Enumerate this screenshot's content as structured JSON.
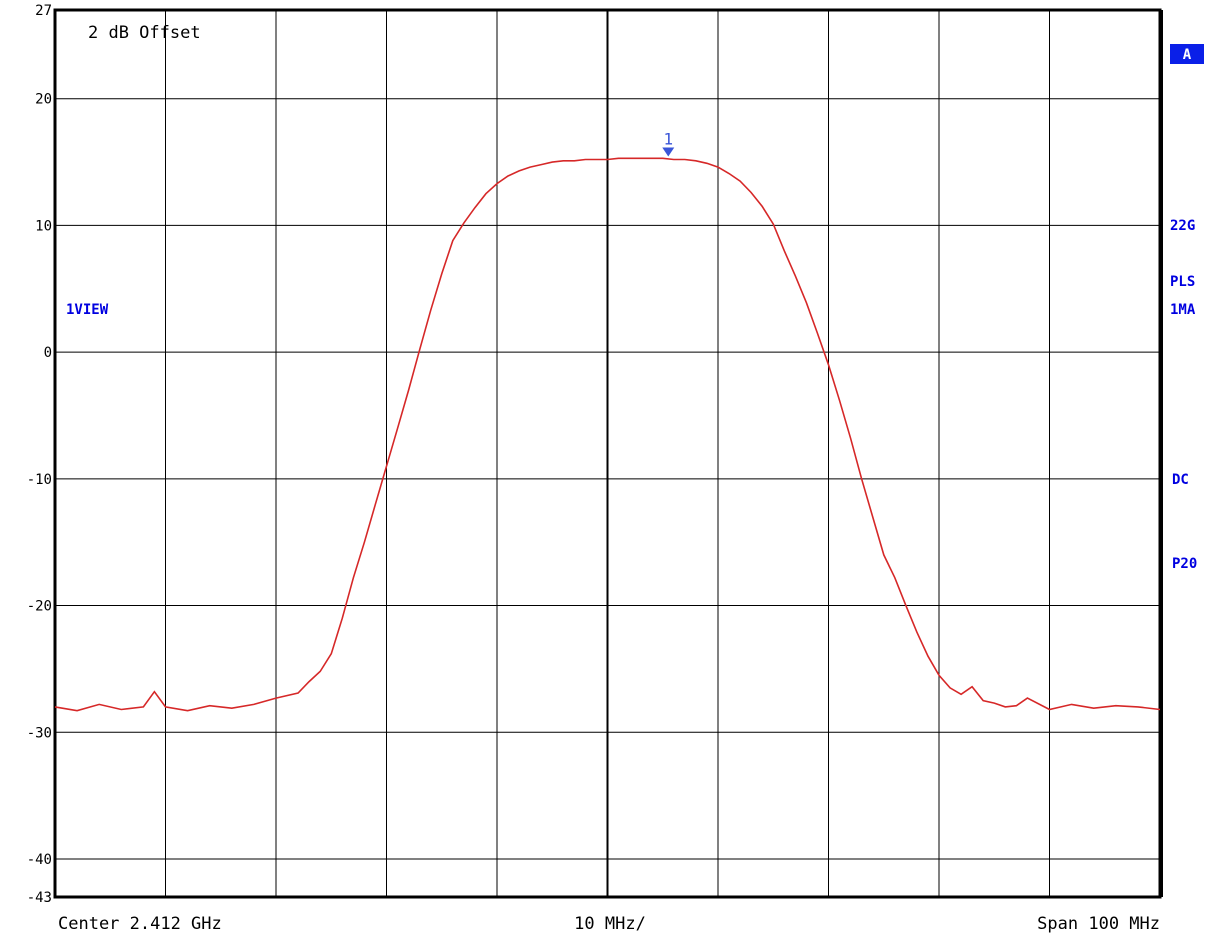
{
  "colors": {
    "trace": "#d62828",
    "annotation": "#0000e0",
    "marker": "#3a55d8",
    "grid": "#000000"
  },
  "chart_data": {
    "type": "line",
    "title": "",
    "xlabel": "",
    "ylabel": "",
    "grid": true,
    "xlim": [
      2362,
      2462
    ],
    "ylim": [
      -43,
      27
    ],
    "y_ticks": [
      {
        "value": 27,
        "label": "27"
      },
      {
        "value": 20,
        "label": "20"
      },
      {
        "value": 10,
        "label": "10"
      },
      {
        "value": 0,
        "label": "0"
      },
      {
        "value": -10,
        "label": "-10"
      },
      {
        "value": -20,
        "label": "-20"
      },
      {
        "value": -30,
        "label": "-30"
      },
      {
        "value": -40,
        "label": "-40"
      },
      {
        "value": -43,
        "label": "-43"
      }
    ],
    "x_gridlines": [
      2372,
      2382,
      2392,
      2402,
      2412,
      2422,
      2432,
      2442,
      2452
    ],
    "footer": {
      "center_label": "Center 2.412 GHz",
      "div_label": "10 MHz/",
      "span_label": "Span 100 MHz"
    },
    "annotation": "2 dB Offset",
    "left_label": "1VIEW",
    "side_labels": {
      "top_badge": "A",
      "label_1": "22G",
      "label_2": "PLS",
      "label_3": "1MA",
      "label_4": "DC",
      "label_5": "P20"
    },
    "marker": {
      "label": "1",
      "x": 2417.5,
      "y": 15.6
    },
    "series": [
      {
        "x": [
          2362,
          2364,
          2366,
          2368,
          2370,
          2371,
          2372,
          2374,
          2376,
          2378,
          2380,
          2382,
          2384,
          2385,
          2386,
          2387,
          2388,
          2389,
          2390,
          2391,
          2392,
          2393,
          2394,
          2395,
          2396,
          2397,
          2398,
          2399,
          2400,
          2401,
          2402,
          2403,
          2404,
          2405,
          2406,
          2407,
          2408,
          2409,
          2410,
          2411,
          2412,
          2413,
          2414,
          2415,
          2416,
          2417,
          2418,
          2419,
          2420,
          2421,
          2422,
          2423,
          2424,
          2425,
          2426,
          2427,
          2428,
          2429,
          2430,
          2431,
          2432,
          2433,
          2434,
          2435,
          2436,
          2437,
          2438,
          2439,
          2440,
          2441,
          2442,
          2443,
          2444,
          2445,
          2446,
          2447,
          2448,
          2449,
          2450,
          2452,
          2454,
          2456,
          2458,
          2460,
          2462
        ],
        "y": [
          -28.0,
          -28.3,
          -27.8,
          -28.2,
          -28.0,
          -26.8,
          -28.0,
          -28.3,
          -27.9,
          -28.1,
          -27.8,
          -27.3,
          -26.9,
          -26.0,
          -25.2,
          -23.8,
          -21.0,
          -17.8,
          -15.0,
          -12.0,
          -9.0,
          -6.0,
          -3.0,
          0.2,
          3.3,
          6.2,
          8.8,
          10.2,
          11.4,
          12.5,
          13.3,
          13.9,
          14.3,
          14.6,
          14.8,
          15.0,
          15.1,
          15.1,
          15.2,
          15.2,
          15.2,
          15.3,
          15.3,
          15.3,
          15.3,
          15.3,
          15.2,
          15.2,
          15.1,
          14.9,
          14.6,
          14.1,
          13.5,
          12.6,
          11.5,
          10.1,
          8.0,
          6.0,
          3.9,
          1.5,
          -1.0,
          -3.8,
          -6.8,
          -10.0,
          -13.0,
          -16.0,
          -17.8,
          -20.0,
          -22.1,
          -24.0,
          -25.5,
          -26.5,
          -27.0,
          -26.4,
          -27.5,
          -27.7,
          -28.0,
          -27.9,
          -27.3,
          -28.2,
          -27.8,
          -28.1,
          -27.9,
          -28.0,
          -28.2
        ]
      }
    ]
  }
}
